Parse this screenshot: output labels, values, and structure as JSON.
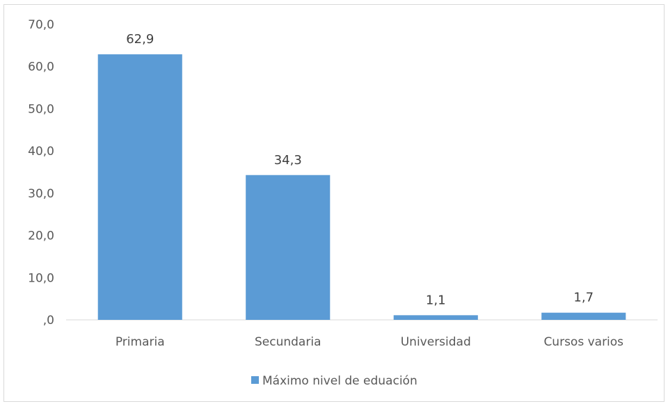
{
  "chart_data": {
    "type": "bar",
    "title": "",
    "xlabel": "",
    "ylabel": "",
    "categories": [
      "Primaria",
      "Secundaria",
      "Universidad",
      "Cursos varios"
    ],
    "series": [
      {
        "name": "Máximo nivel de eduación",
        "values": [
          62.9,
          34.3,
          1.1,
          1.7
        ],
        "value_labels": [
          "62,9",
          "34,3",
          "1,1",
          "1,7"
        ],
        "color": "#5b9bd5"
      }
    ],
    "ylim": [
      0,
      70
    ],
    "yticks": [
      0,
      10,
      20,
      30,
      40,
      50,
      60,
      70
    ],
    "ytick_labels": [
      ",0",
      "10,0",
      "20,0",
      "30,0",
      "40,0",
      "50,0",
      "60,0",
      "70,0"
    ],
    "grid": false,
    "legend_position": "bottom"
  }
}
